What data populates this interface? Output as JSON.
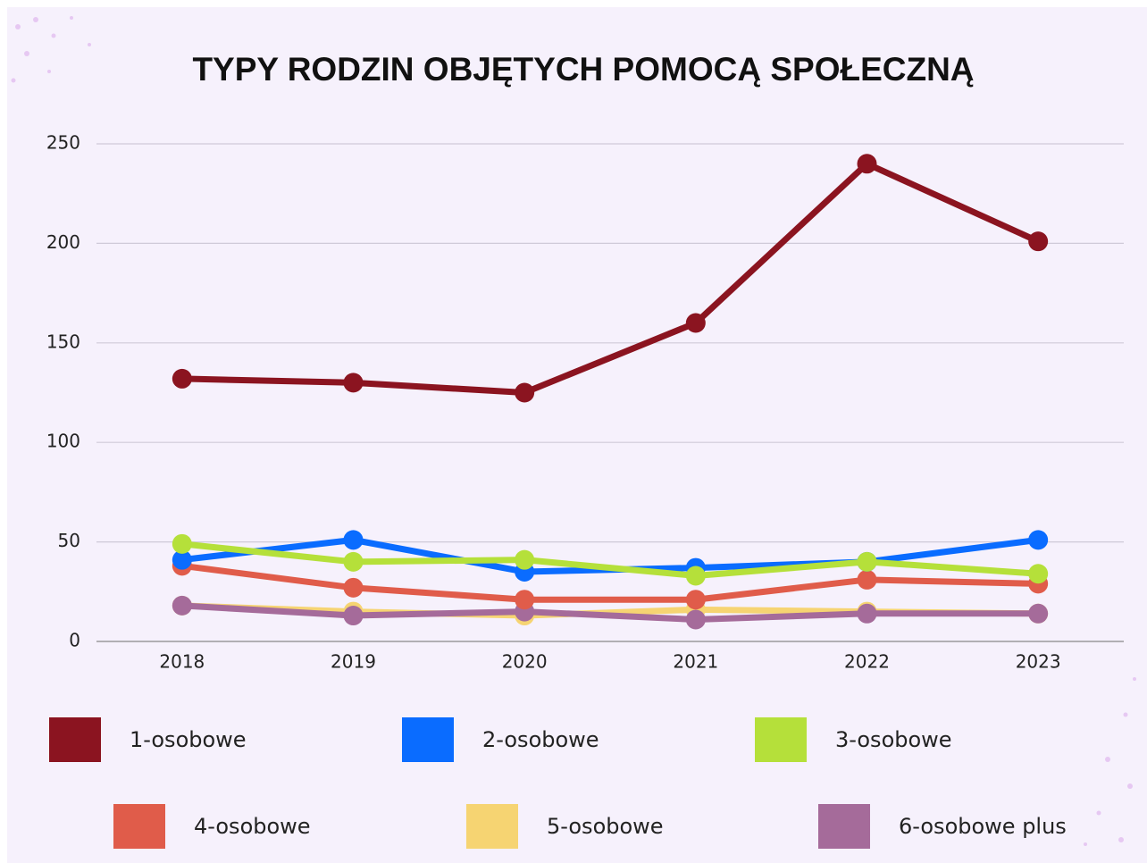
{
  "chart_data": {
    "type": "line",
    "title": "TYPY RODZIN OBJĘTYCH POMOCĄ SPOŁECZNĄ",
    "categories": [
      "2018",
      "2019",
      "2020",
      "2021",
      "2022",
      "2023"
    ],
    "series": [
      {
        "name": "1-osobowe",
        "color": "#8b1420",
        "values": [
          132,
          130,
          125,
          160,
          240,
          201
        ]
      },
      {
        "name": "2-osobowe",
        "color": "#0a6cff",
        "values": [
          41,
          51,
          35,
          37,
          40,
          51
        ]
      },
      {
        "name": "3-osobowe",
        "color": "#b5e03a",
        "values": [
          49,
          40,
          41,
          33,
          40,
          34
        ]
      },
      {
        "name": "4-osobowe",
        "color": "#e05c4a",
        "values": [
          38,
          27,
          21,
          21,
          31,
          29
        ]
      },
      {
        "name": "5-osobowe",
        "color": "#f6d472",
        "values": [
          18,
          15,
          13,
          16,
          15,
          14
        ]
      },
      {
        "name": "6-osobowe plus",
        "color": "#a56b9a",
        "values": [
          18,
          13,
          15,
          11,
          14,
          14
        ]
      }
    ],
    "ylim": [
      0,
      250
    ],
    "yticks": [
      0,
      50,
      100,
      150,
      200,
      250
    ],
    "grid": true
  }
}
